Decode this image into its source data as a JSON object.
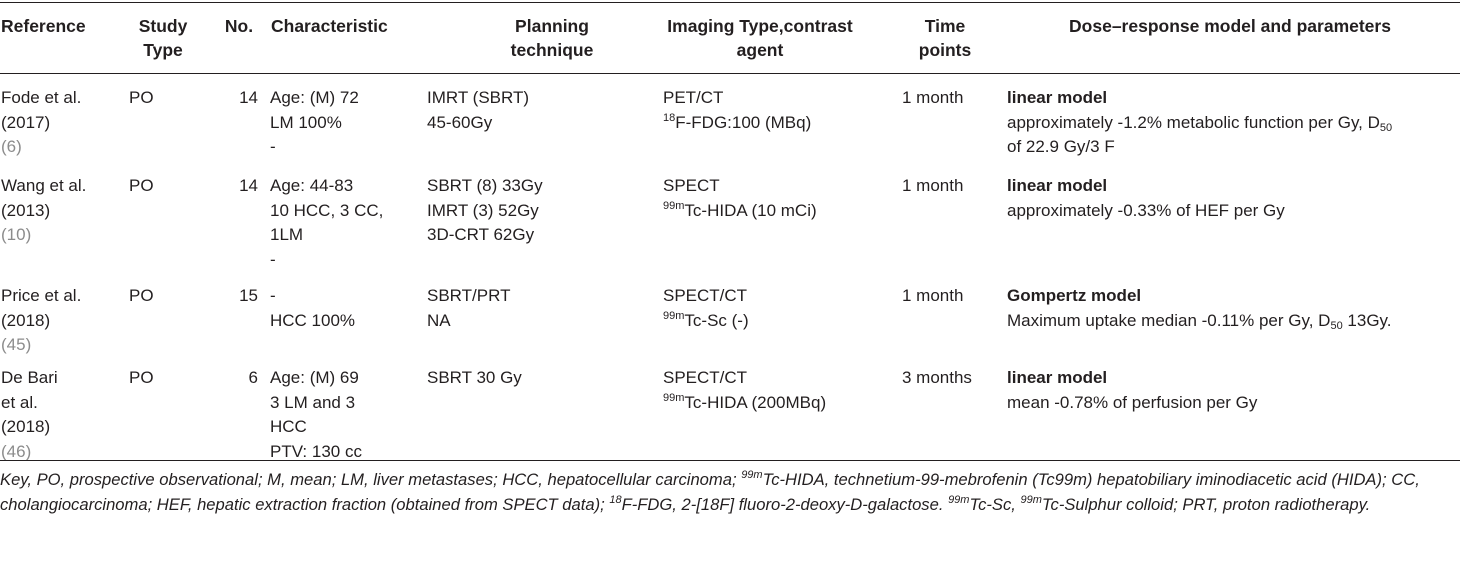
{
  "headers": {
    "reference": "Reference",
    "study_type": [
      "Study",
      "Type"
    ],
    "no": "No.",
    "characteristic": "Characteristic",
    "planning": [
      "Planning",
      "technique"
    ],
    "imaging": [
      "Imaging Type,contrast",
      "agent"
    ],
    "time": [
      "Time",
      "points"
    ],
    "model": "Dose–response model and parameters"
  },
  "rows": [
    {
      "reference": [
        "Fode et al.",
        "(2017)"
      ],
      "ref_num": "(6)",
      "study_type": "PO",
      "no": "14",
      "characteristic": [
        "Age: (M) 72",
        "LM 100%",
        "-"
      ],
      "planning": [
        "IMRT (SBRT)",
        "45-60Gy"
      ],
      "imaging_type": "PET/CT",
      "agent_sup": "18",
      "agent_text": "F-FDG:100 (MBq)",
      "time": "1 month",
      "model": "linear model",
      "params_1": "approximately -1.2% metabolic function per Gy, D",
      "params_sub": "50",
      "params_2": "of 22.9 Gy/3 F"
    },
    {
      "reference": [
        "Wang et al.",
        "(2013)"
      ],
      "ref_num": "(10)",
      "study_type": "PO",
      "no": "14",
      "characteristic": [
        "Age: 44-83",
        "10 HCC, 3 CC,",
        "1LM",
        "-"
      ],
      "planning": [
        "SBRT (8) 33Gy",
        "IMRT (3) 52Gy",
        "3D-CRT 62Gy"
      ],
      "imaging_type": "SPECT",
      "agent_sup": "99m",
      "agent_text": "Tc-HIDA (10 mCi)",
      "time": "1 month",
      "model": "linear model",
      "params": "approximately -0.33% of HEF per Gy"
    },
    {
      "reference": [
        "Price et al.",
        "(2018)"
      ],
      "ref_num": "(45)",
      "study_type": "PO",
      "no": "15",
      "characteristic": [
        "-",
        "HCC 100%"
      ],
      "planning": [
        "SBRT/PRT",
        "NA"
      ],
      "imaging_type": "SPECT/CT",
      "agent_sup": "99m",
      "agent_text": "Tc-Sc (-)",
      "time": "1 month",
      "model": "Gompertz model",
      "params_1": "Maximum uptake median -0.11% per Gy, D",
      "params_sub": "50",
      "params_2": " 13Gy."
    },
    {
      "reference": [
        "De Bari",
        "et al.",
        "(2018)"
      ],
      "ref_num": "(46)",
      "study_type": "PO",
      "no": "6",
      "characteristic": [
        "Age: (M) 69",
        "3 LM and 3",
        "HCC",
        "PTV: 130 cc"
      ],
      "planning": [
        "SBRT 30 Gy"
      ],
      "imaging_type": "SPECT/CT",
      "agent_sup": "99m",
      "agent_text": "Tc-HIDA (200MBq)",
      "time": "3 months",
      "model": "linear model",
      "params": "mean -0.78% of perfusion per Gy"
    }
  ],
  "footnote": {
    "p1": "Key, PO, prospective observational; M, mean; LM, liver metastases; HCC, hepatocellular carcinoma; ",
    "sup1": "99m",
    "p2": "Tc-HIDA, technetium-99-mebrofenin (Tc99m) hepatobiliary iminodiacetic acid (HIDA); CC, cholangiocarcinoma; HEF, hepatic extraction fraction (obtained from SPECT data); ",
    "sup2": "18",
    "p3": "F-FDG, 2-[18F] fluoro-2-deoxy-D-galactose. ",
    "sup3": "99m",
    "p4": "Tc-Sc, ",
    "sup4": "99m",
    "p5": "Tc-Sulphur colloid; PRT, proton radiotherapy."
  }
}
